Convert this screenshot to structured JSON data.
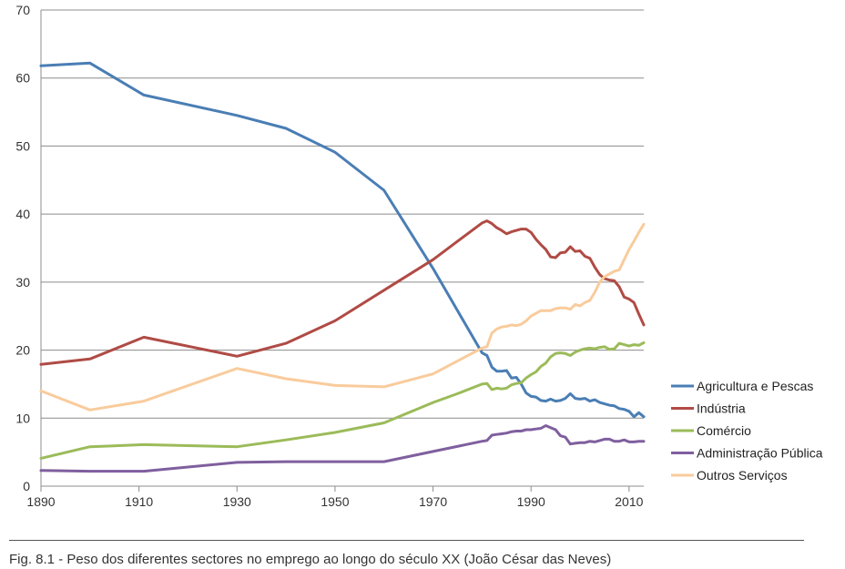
{
  "caption": "Fig. 8.1 - Peso dos diferentes sectores no emprego ao longo do século XX (João César das Neves)",
  "chart_data": {
    "type": "line",
    "xlim": [
      1890,
      2013
    ],
    "ylim": [
      0,
      70
    ],
    "x_ticks": [
      1890,
      1910,
      1930,
      1950,
      1970,
      1990,
      2010
    ],
    "y_ticks": [
      0,
      10,
      20,
      30,
      40,
      50,
      60,
      70
    ],
    "grid": "horizontal",
    "legend_position": "right",
    "series": [
      {
        "name": "Agricultura e Pescas",
        "color": "#4a7eb4",
        "points": [
          [
            1890,
            61.8
          ],
          [
            1900,
            62.2
          ],
          [
            1911,
            57.5
          ],
          [
            1930,
            54.5
          ],
          [
            1940,
            52.6
          ],
          [
            1950,
            49.1
          ],
          [
            1960,
            43.5
          ],
          [
            1970,
            32.0
          ],
          [
            1980,
            19.6
          ],
          [
            1981,
            19.2
          ],
          [
            1982,
            17.5
          ],
          [
            1983,
            16.9
          ],
          [
            1984,
            16.9
          ],
          [
            1985,
            17.0
          ],
          [
            1986,
            15.9
          ],
          [
            1987,
            16.0
          ],
          [
            1988,
            15.0
          ],
          [
            1989,
            13.7
          ],
          [
            1990,
            13.2
          ],
          [
            1991,
            13.1
          ],
          [
            1992,
            12.6
          ],
          [
            1993,
            12.5
          ],
          [
            1994,
            12.8
          ],
          [
            1995,
            12.5
          ],
          [
            1996,
            12.6
          ],
          [
            1997,
            12.9
          ],
          [
            1998,
            13.6
          ],
          [
            1999,
            12.9
          ],
          [
            2000,
            12.8
          ],
          [
            2001,
            12.9
          ],
          [
            2002,
            12.5
          ],
          [
            2003,
            12.7
          ],
          [
            2004,
            12.3
          ],
          [
            2005,
            12.1
          ],
          [
            2006,
            11.9
          ],
          [
            2007,
            11.8
          ],
          [
            2008,
            11.4
          ],
          [
            2009,
            11.3
          ],
          [
            2010,
            11.0
          ],
          [
            2011,
            10.2
          ],
          [
            2012,
            10.8
          ],
          [
            2013,
            10.2
          ]
        ]
      },
      {
        "name": "Indústria",
        "color": "#b04b45",
        "points": [
          [
            1890,
            17.9
          ],
          [
            1900,
            18.7
          ],
          [
            1911,
            21.9
          ],
          [
            1930,
            19.1
          ],
          [
            1940,
            21.0
          ],
          [
            1950,
            24.3
          ],
          [
            1960,
            28.8
          ],
          [
            1970,
            33.3
          ],
          [
            1980,
            38.7
          ],
          [
            1981,
            39.0
          ],
          [
            1982,
            38.6
          ],
          [
            1983,
            38.0
          ],
          [
            1984,
            37.6
          ],
          [
            1985,
            37.1
          ],
          [
            1986,
            37.4
          ],
          [
            1987,
            37.6
          ],
          [
            1988,
            37.8
          ],
          [
            1989,
            37.8
          ],
          [
            1990,
            37.3
          ],
          [
            1991,
            36.3
          ],
          [
            1992,
            35.5
          ],
          [
            1993,
            34.8
          ],
          [
            1994,
            33.7
          ],
          [
            1995,
            33.6
          ],
          [
            1996,
            34.3
          ],
          [
            1997,
            34.4
          ],
          [
            1998,
            35.2
          ],
          [
            1999,
            34.5
          ],
          [
            2000,
            34.6
          ],
          [
            2001,
            33.8
          ],
          [
            2002,
            33.5
          ],
          [
            2003,
            32.2
          ],
          [
            2004,
            31.1
          ],
          [
            2005,
            30.5
          ],
          [
            2006,
            30.3
          ],
          [
            2007,
            30.2
          ],
          [
            2008,
            29.3
          ],
          [
            2009,
            27.8
          ],
          [
            2010,
            27.5
          ],
          [
            2011,
            27.0
          ],
          [
            2012,
            25.3
          ],
          [
            2013,
            23.7
          ]
        ]
      },
      {
        "name": "Comércio",
        "color": "#9bbb59",
        "points": [
          [
            1890,
            4.1
          ],
          [
            1900,
            5.8
          ],
          [
            1911,
            6.1
          ],
          [
            1930,
            5.8
          ],
          [
            1940,
            6.8
          ],
          [
            1950,
            7.9
          ],
          [
            1960,
            9.3
          ],
          [
            1970,
            12.3
          ],
          [
            1975,
            13.6
          ],
          [
            1980,
            15.0
          ],
          [
            1981,
            15.1
          ],
          [
            1982,
            14.2
          ],
          [
            1983,
            14.4
          ],
          [
            1984,
            14.3
          ],
          [
            1985,
            14.4
          ],
          [
            1986,
            14.9
          ],
          [
            1987,
            15.1
          ],
          [
            1988,
            15.2
          ],
          [
            1989,
            15.9
          ],
          [
            1990,
            16.4
          ],
          [
            1991,
            16.8
          ],
          [
            1992,
            17.6
          ],
          [
            1993,
            18.1
          ],
          [
            1994,
            19.0
          ],
          [
            1995,
            19.5
          ],
          [
            1996,
            19.6
          ],
          [
            1997,
            19.5
          ],
          [
            1998,
            19.2
          ],
          [
            1999,
            19.7
          ],
          [
            2000,
            20.0
          ],
          [
            2001,
            20.2
          ],
          [
            2002,
            20.3
          ],
          [
            2003,
            20.2
          ],
          [
            2004,
            20.4
          ],
          [
            2005,
            20.5
          ],
          [
            2006,
            20.1
          ],
          [
            2007,
            20.2
          ],
          [
            2008,
            21.0
          ],
          [
            2009,
            20.8
          ],
          [
            2010,
            20.6
          ],
          [
            2011,
            20.8
          ],
          [
            2012,
            20.7
          ],
          [
            2013,
            21.1
          ]
        ]
      },
      {
        "name": "Administração Pública",
        "color": "#7f5f9e",
        "points": [
          [
            1890,
            2.3
          ],
          [
            1900,
            2.2
          ],
          [
            1911,
            2.2
          ],
          [
            1930,
            3.5
          ],
          [
            1940,
            3.6
          ],
          [
            1950,
            3.6
          ],
          [
            1960,
            3.6
          ],
          [
            1970,
            5.1
          ],
          [
            1980,
            6.6
          ],
          [
            1981,
            6.7
          ],
          [
            1982,
            7.5
          ],
          [
            1983,
            7.6
          ],
          [
            1984,
            7.7
          ],
          [
            1985,
            7.8
          ],
          [
            1986,
            8.0
          ],
          [
            1987,
            8.1
          ],
          [
            1988,
            8.1
          ],
          [
            1989,
            8.3
          ],
          [
            1990,
            8.3
          ],
          [
            1991,
            8.4
          ],
          [
            1992,
            8.5
          ],
          [
            1993,
            8.9
          ],
          [
            1994,
            8.6
          ],
          [
            1995,
            8.3
          ],
          [
            1996,
            7.4
          ],
          [
            1997,
            7.2
          ],
          [
            1998,
            6.2
          ],
          [
            1999,
            6.3
          ],
          [
            2000,
            6.4
          ],
          [
            2001,
            6.4
          ],
          [
            2002,
            6.6
          ],
          [
            2003,
            6.5
          ],
          [
            2004,
            6.7
          ],
          [
            2005,
            6.9
          ],
          [
            2006,
            6.9
          ],
          [
            2007,
            6.6
          ],
          [
            2008,
            6.6
          ],
          [
            2009,
            6.8
          ],
          [
            2010,
            6.5
          ],
          [
            2011,
            6.5
          ],
          [
            2012,
            6.6
          ],
          [
            2013,
            6.6
          ]
        ]
      },
      {
        "name": "Outros Serviços",
        "color": "#f9cb9c",
        "points": [
          [
            1890,
            14.0
          ],
          [
            1900,
            11.2
          ],
          [
            1911,
            12.5
          ],
          [
            1930,
            17.3
          ],
          [
            1940,
            15.8
          ],
          [
            1950,
            14.8
          ],
          [
            1960,
            14.6
          ],
          [
            1970,
            16.5
          ],
          [
            1980,
            20.3
          ],
          [
            1981,
            20.5
          ],
          [
            1982,
            22.5
          ],
          [
            1983,
            23.1
          ],
          [
            1984,
            23.4
          ],
          [
            1985,
            23.5
          ],
          [
            1986,
            23.7
          ],
          [
            1987,
            23.6
          ],
          [
            1988,
            23.8
          ],
          [
            1989,
            24.3
          ],
          [
            1990,
            25.0
          ],
          [
            1991,
            25.4
          ],
          [
            1992,
            25.8
          ],
          [
            1993,
            25.8
          ],
          [
            1994,
            25.8
          ],
          [
            1995,
            26.1
          ],
          [
            1996,
            26.2
          ],
          [
            1997,
            26.2
          ],
          [
            1998,
            26.0
          ],
          [
            1999,
            26.7
          ],
          [
            2000,
            26.5
          ],
          [
            2001,
            27.0
          ],
          [
            2002,
            27.3
          ],
          [
            2003,
            28.5
          ],
          [
            2004,
            30.0
          ],
          [
            2005,
            30.8
          ],
          [
            2006,
            31.2
          ],
          [
            2007,
            31.6
          ],
          [
            2008,
            31.8
          ],
          [
            2009,
            33.3
          ],
          [
            2010,
            34.8
          ],
          [
            2011,
            36.0
          ],
          [
            2012,
            37.3
          ],
          [
            2013,
            38.5
          ]
        ]
      }
    ]
  }
}
